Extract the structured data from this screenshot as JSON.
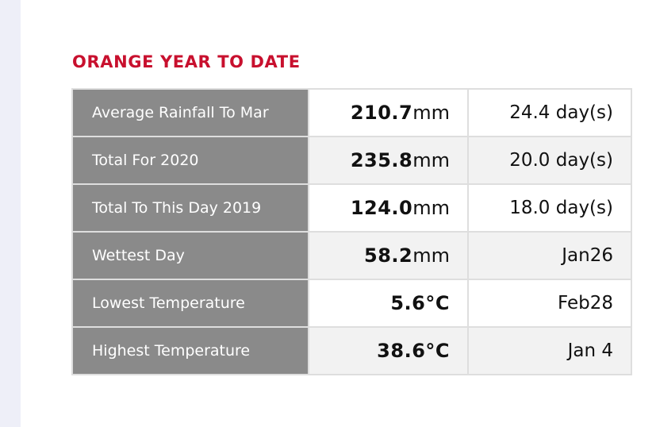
{
  "section": {
    "title": "ORANGE YEAR TO DATE"
  },
  "rows": [
    {
      "label": "Average Rainfall To Mar",
      "value": "210.7",
      "unit": "mm",
      "extra": "24.4 day(s)"
    },
    {
      "label": "Total For 2020",
      "value": "235.8",
      "unit": "mm",
      "extra": "20.0 day(s)"
    },
    {
      "label": "Total To This Day 2019",
      "value": "124.0",
      "unit": "mm",
      "extra": "18.0 day(s)"
    },
    {
      "label": "Wettest Day",
      "value": "58.2",
      "unit": "mm",
      "extra": "Jan26"
    },
    {
      "label": "Lowest Temperature",
      "value": "5.6°C",
      "unit": "",
      "extra": "Feb28"
    },
    {
      "label": "Highest Temperature",
      "value": "38.6°C",
      "unit": "",
      "extra": "Jan 4"
    }
  ],
  "colors": {
    "title": "#c8102e",
    "label_bg": "#8a8a8a",
    "alt_row_bg": "#f2f2f2",
    "side_strip": "#eeeff8"
  }
}
